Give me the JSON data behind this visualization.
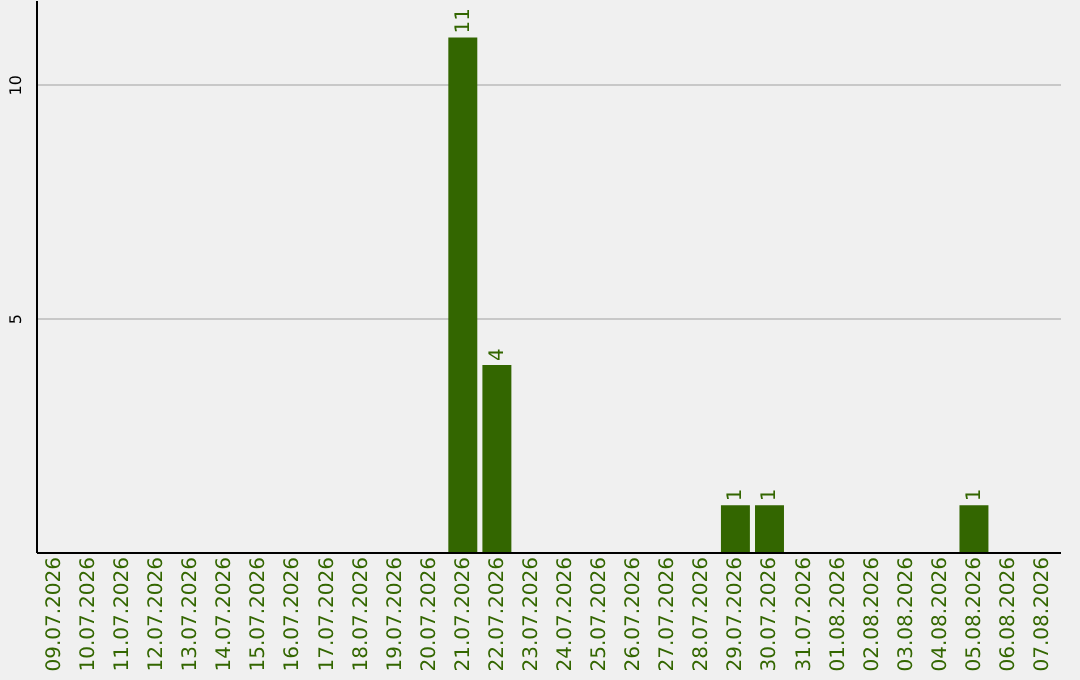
{
  "chart_data": {
    "type": "bar",
    "categories": [
      "09.07.2026",
      "10.07.2026",
      "11.07.2026",
      "12.07.2026",
      "13.07.2026",
      "14.07.2026",
      "15.07.2026",
      "16.07.2026",
      "17.07.2026",
      "18.07.2026",
      "19.07.2026",
      "20.07.2026",
      "21.07.2026",
      "22.07.2026",
      "23.07.2026",
      "24.07.2026",
      "25.07.2026",
      "26.07.2026",
      "27.07.2026",
      "28.07.2026",
      "29.07.2026",
      "30.07.2026",
      "31.07.2026",
      "01.08.2026",
      "02.08.2026",
      "03.08.2026",
      "04.08.2026",
      "05.08.2026",
      "06.08.2026",
      "07.08.2026"
    ],
    "values": [
      0,
      0,
      0,
      0,
      0,
      0,
      0,
      0,
      0,
      0,
      0,
      0,
      11,
      4,
      0,
      0,
      0,
      0,
      0,
      0,
      1,
      1,
      0,
      0,
      0,
      0,
      0,
      1,
      0,
      0
    ],
    "value_labels": [
      null,
      null,
      null,
      null,
      null,
      null,
      null,
      null,
      null,
      null,
      null,
      null,
      "11",
      "4",
      null,
      null,
      null,
      null,
      null,
      null,
      "1",
      "1",
      null,
      null,
      null,
      null,
      null,
      "1",
      null,
      null
    ],
    "color": "#336600",
    "ylim": [
      0,
      11.8
    ],
    "yticks": [
      5,
      10
    ],
    "grid": "y"
  }
}
